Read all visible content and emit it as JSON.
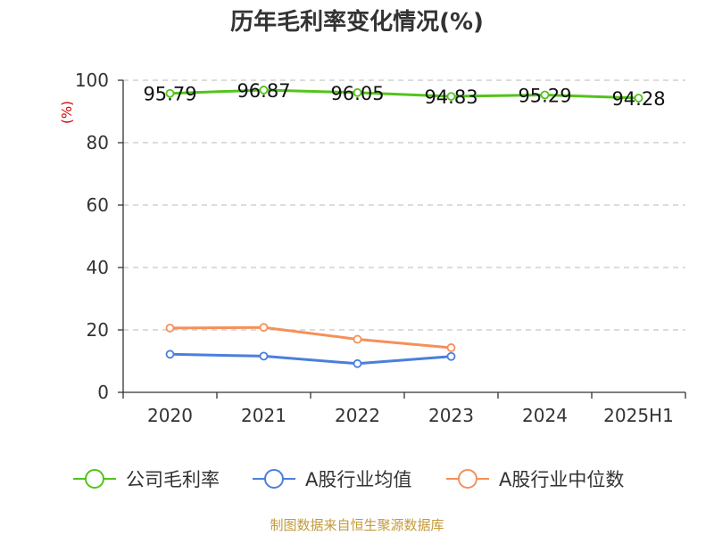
{
  "title": "历年毛利率变化情况(%)",
  "unit_label": "(%)",
  "footer": "制图数据来自恒生聚源数据库",
  "chart_data": {
    "type": "line",
    "title": "历年毛利率变化情况(%)",
    "ylabel": "(%)",
    "categories": [
      "2020",
      "2021",
      "2022",
      "2023",
      "2024",
      "2025H1"
    ],
    "ylim": [
      0,
      100
    ],
    "yticks": [
      0,
      20,
      40,
      60,
      80,
      100
    ],
    "grid": true,
    "legend_position": "bottom",
    "series": [
      {
        "name": "公司毛利率",
        "color": "#52c41a",
        "values": [
          95.79,
          96.87,
          96.05,
          94.83,
          95.29,
          94.28
        ],
        "labels": [
          "95.79",
          "96.87",
          "96.05",
          "94.83",
          "95.29",
          "94.28"
        ]
      },
      {
        "name": "A股行业均值",
        "color": "#4a7fdc",
        "values": [
          12.2,
          11.6,
          9.2,
          11.5,
          null,
          null
        ]
      },
      {
        "name": "A股行业中位数",
        "color": "#f5905a",
        "values": [
          20.6,
          20.8,
          17.0,
          14.3,
          null,
          null
        ]
      }
    ]
  }
}
